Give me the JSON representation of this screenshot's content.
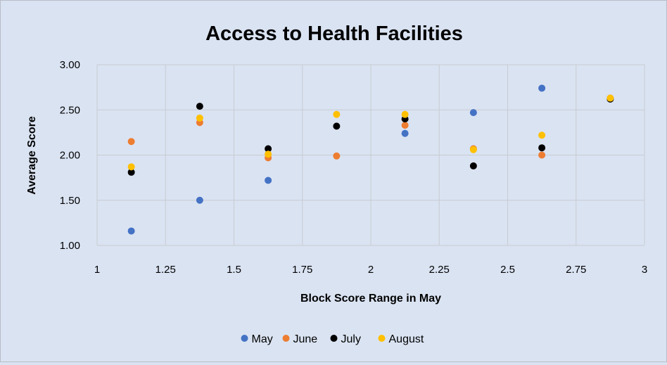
{
  "chart_data": {
    "type": "scatter",
    "title": "Access to Health Facilities",
    "xlabel": "Block Score Range in May",
    "ylabel": "Average Score",
    "xlim": [
      1,
      3
    ],
    "ylim": [
      1.0,
      3.0
    ],
    "x_ticks": [
      "1",
      "1.25",
      "1.5",
      "1.75",
      "2",
      "2.25",
      "2.5",
      "2.75",
      "3"
    ],
    "y_ticks": [
      "1.00",
      "1.50",
      "2.00",
      "2.50",
      "3.00"
    ],
    "grid": true,
    "legend_position": "bottom",
    "series": [
      {
        "name": "May",
        "color": "#4472c4",
        "points": [
          [
            1.125,
            1.16
          ],
          [
            1.375,
            1.5
          ],
          [
            1.625,
            1.72
          ],
          [
            2.125,
            2.24
          ],
          [
            2.375,
            2.47
          ],
          [
            2.625,
            2.74
          ]
        ]
      },
      {
        "name": "June",
        "color": "#ed7d31",
        "points": [
          [
            1.125,
            2.15
          ],
          [
            1.375,
            2.36
          ],
          [
            1.625,
            1.97
          ],
          [
            1.875,
            1.99
          ],
          [
            2.125,
            2.33
          ],
          [
            2.375,
            2.07
          ],
          [
            2.625,
            2.0
          ],
          [
            2.875,
            2.63
          ]
        ]
      },
      {
        "name": "July",
        "color": "#000000",
        "points": [
          [
            1.125,
            1.81
          ],
          [
            1.375,
            2.54
          ],
          [
            1.625,
            2.07
          ],
          [
            1.875,
            2.32
          ],
          [
            2.125,
            2.4
          ],
          [
            2.375,
            1.88
          ],
          [
            2.625,
            2.08
          ],
          [
            2.875,
            2.62
          ]
        ]
      },
      {
        "name": "August",
        "color": "#ffc000",
        "points": [
          [
            1.125,
            1.87
          ],
          [
            1.375,
            2.41
          ],
          [
            1.625,
            2.01
          ],
          [
            1.875,
            2.45
          ],
          [
            2.125,
            2.45
          ],
          [
            2.375,
            2.06
          ],
          [
            2.625,
            2.22
          ],
          [
            2.875,
            2.63
          ]
        ]
      }
    ]
  }
}
